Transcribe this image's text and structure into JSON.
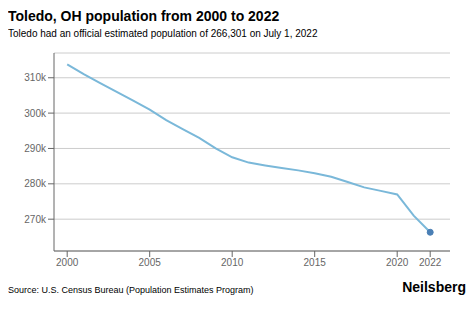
{
  "chart_data": {
    "type": "line",
    "title": "Toledo, OH population from 2000 to 2022",
    "subtitle": "Toledo had an official estimated population of 266,301 on July 1, 2022",
    "annotations": [
      "Source: U.S. Census Bureau (Population Estimates Program)",
      "Neilsberg"
    ],
    "x": [
      2000,
      2001,
      2002,
      2003,
      2004,
      2005,
      2006,
      2007,
      2008,
      2009,
      2010,
      2011,
      2012,
      2013,
      2014,
      2015,
      2016,
      2017,
      2018,
      2019,
      2020,
      2021,
      2022
    ],
    "series": [
      {
        "type": "line",
        "color": "#7ab8d9",
        "values": [
          313800,
          311000,
          308500,
          306000,
          303500,
          301000,
          298000,
          295500,
          293000,
          290000,
          287500,
          286000,
          285200,
          284500,
          283800,
          283000,
          282000,
          280500,
          279000,
          278000,
          277000,
          271000,
          266301
        ]
      },
      {
        "type": "scatter",
        "color": "#4a7fb5",
        "values": [
          null,
          null,
          null,
          null,
          null,
          null,
          null,
          null,
          null,
          null,
          null,
          null,
          null,
          null,
          null,
          null,
          null,
          null,
          null,
          null,
          null,
          null,
          266301
        ]
      }
    ],
    "xlim": [
      1999.2,
      2023.2
    ],
    "xticks": [
      2000,
      2005,
      2010,
      2015,
      2020,
      2022
    ],
    "ylim": [
      261000,
      317000
    ],
    "yticks": [
      {
        "value": 270000,
        "label": "270k"
      },
      {
        "value": 280000,
        "label": "280k"
      },
      {
        "value": 290000,
        "label": "290k"
      },
      {
        "value": 300000,
        "label": "300k"
      },
      {
        "value": 310000,
        "label": "310k"
      }
    ],
    "grid": true
  }
}
